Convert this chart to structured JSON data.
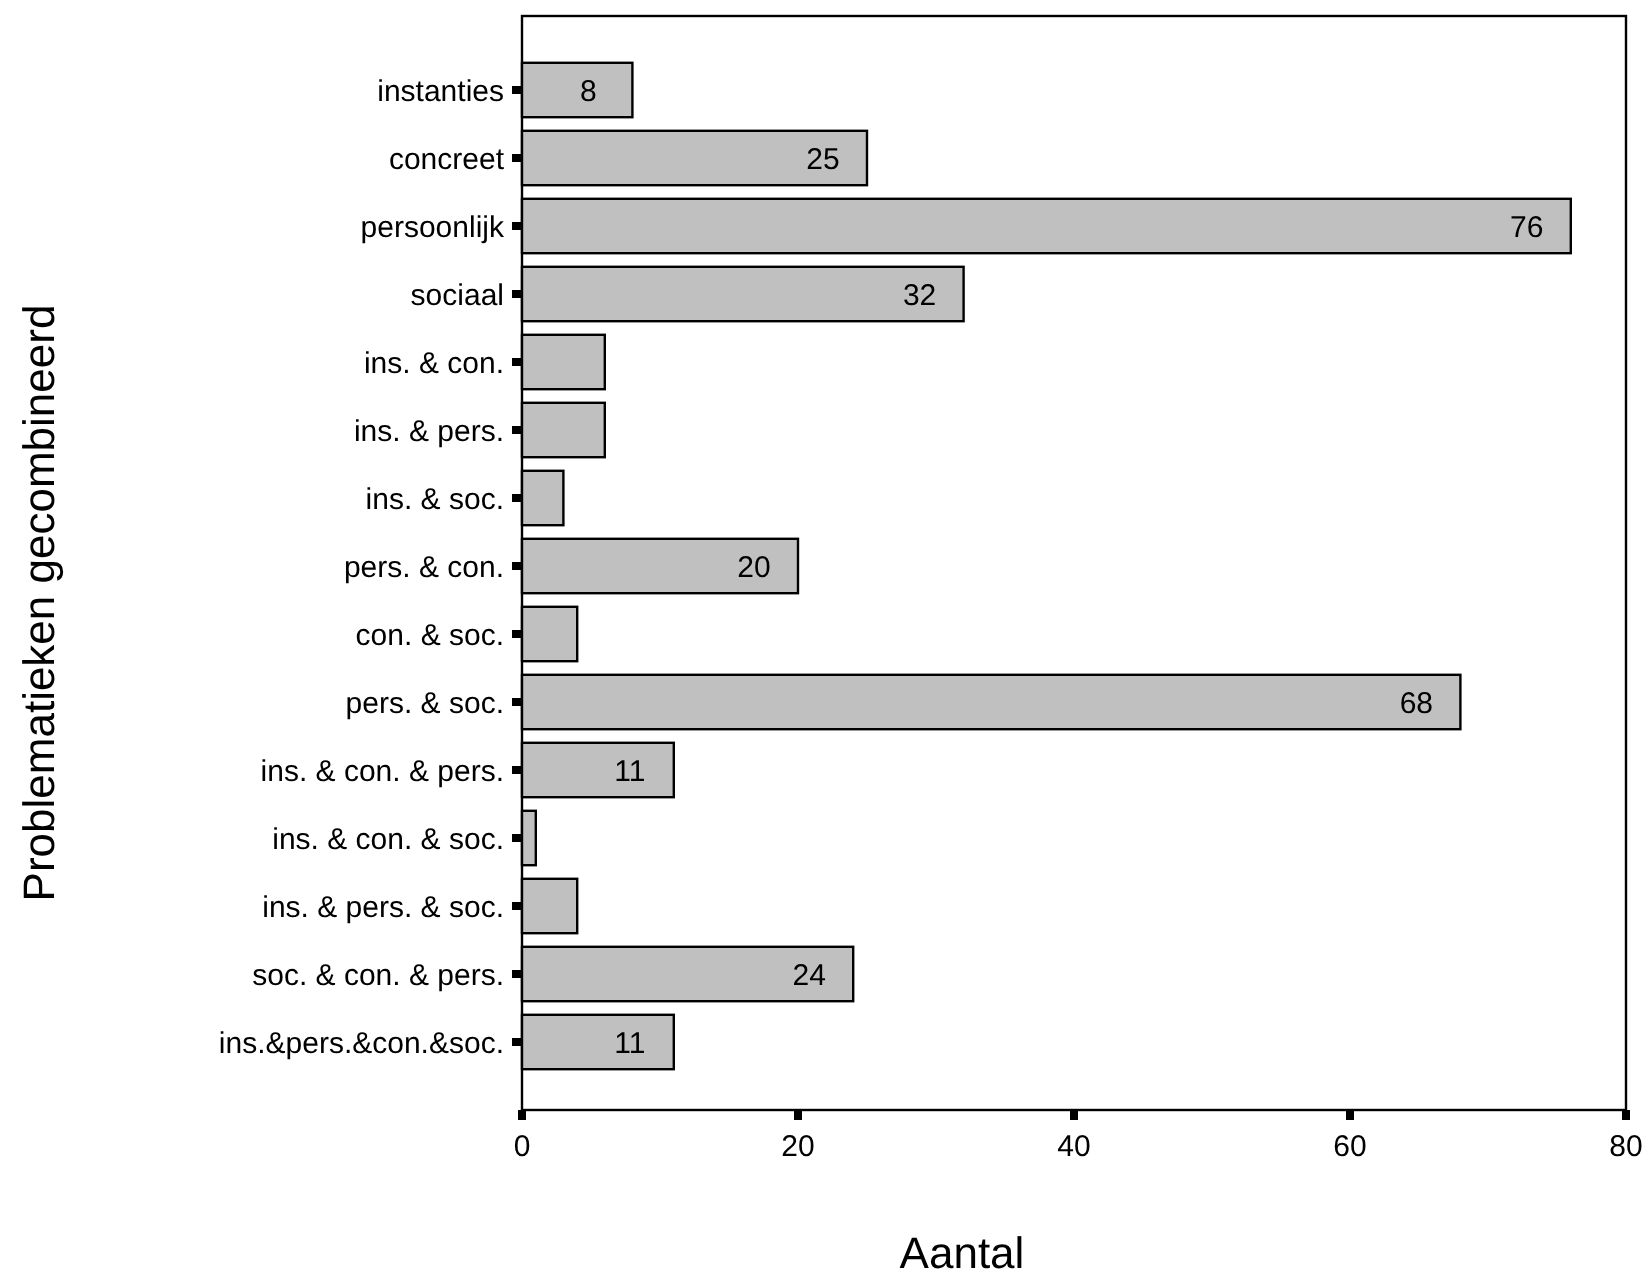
{
  "chart_data": {
    "type": "bar",
    "orientation": "horizontal",
    "xlabel": "Aantal",
    "ylabel": "Problematieken gecombineerd",
    "categories": [
      "instanties",
      "concreet",
      "persoonlijk",
      "sociaal",
      "ins. & con.",
      "ins. & pers.",
      "ins. & soc.",
      "pers. & con.",
      "con. & soc.",
      "pers. & soc.",
      "ins. & con. & pers.",
      "ins. & con. & soc.",
      "ins. & pers. & soc.",
      "soc. & con. & pers.",
      "ins.&pers.&con.&soc."
    ],
    "values": [
      8,
      25,
      76,
      32,
      6,
      6,
      3,
      20,
      4,
      68,
      11,
      1,
      4,
      24,
      11
    ],
    "value_labels": [
      "8",
      "25",
      "76",
      "32",
      null,
      null,
      null,
      "20",
      null,
      "68",
      "11",
      null,
      null,
      "24",
      "11"
    ],
    "color": "#c0c0c0",
    "xlim": [
      0,
      80
    ],
    "xticks": [
      0,
      20,
      40,
      60,
      80
    ],
    "grid": false
  }
}
